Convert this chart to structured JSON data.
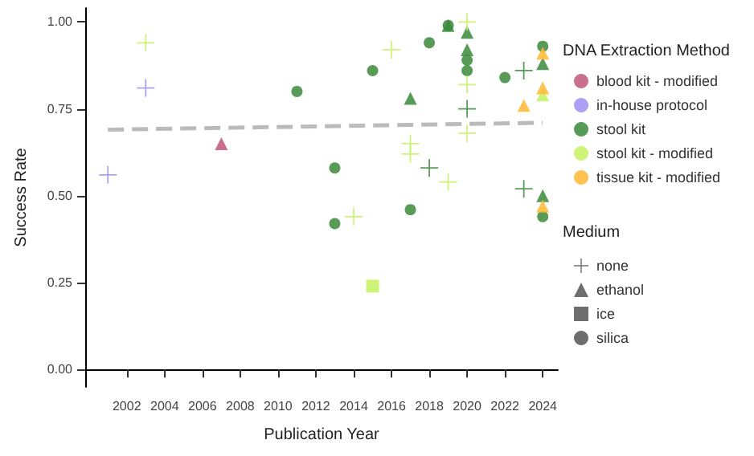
{
  "chart_data": {
    "type": "scatter",
    "xlabel": "Publication Year",
    "ylabel": "Success Rate",
    "legend_title": [
      "DNA Extraction Method",
      "Medium"
    ],
    "legend": "right",
    "grid": false,
    "xlim": [
      1999.8,
      2024.8
    ],
    "xticks": [
      2002,
      2004,
      2006,
      2008,
      2010,
      2012,
      2014,
      2016,
      2018,
      2020,
      2022,
      2024
    ],
    "ylim": [
      -0.05,
      1.04
    ],
    "yticks": [
      {
        "value": 0,
        "label": "0.00"
      },
      {
        "value": 0.25,
        "label": "0.25"
      },
      {
        "value": 0.5,
        "label": "0.50"
      },
      {
        "value": 0.75,
        "label": "0.75"
      },
      {
        "value": 1,
        "label": "1.00"
      }
    ],
    "series": [
      {
        "color": "#c0577a",
        "marker": "triangle",
        "x": [
          2007
        ],
        "values": [
          0.65
        ]
      },
      {
        "color": "#9f8ff0",
        "marker": "cross",
        "x": [
          2001,
          2003
        ],
        "values": [
          0.56,
          0.81
        ]
      },
      {
        "color": "#3a8a3a",
        "marker": "circle",
        "x": [
          2011,
          2013,
          2013,
          2015,
          2017,
          2018,
          2019,
          2020,
          2020,
          2022,
          2024,
          2024
        ],
        "values": [
          0.8,
          0.58,
          0.42,
          0.86,
          0.46,
          0.94,
          0.99,
          0.89,
          0.86,
          0.84,
          0.93,
          0.44
        ]
      },
      {
        "color": "#3a8a3a",
        "marker": "triangle",
        "x": [
          2017,
          2019,
          2020,
          2020,
          2024,
          2024
        ],
        "values": [
          0.78,
          0.99,
          0.97,
          0.92,
          0.88,
          0.5
        ]
      },
      {
        "color": "#3a8a3a",
        "marker": "cross",
        "x": [
          2018,
          2020,
          2023,
          2023
        ],
        "values": [
          0.58,
          0.75,
          0.86,
          0.52
        ]
      },
      {
        "color": "#c4f25f",
        "marker": "cross",
        "x": [
          2003,
          2014,
          2016,
          2017,
          2017,
          2019,
          2020,
          2020,
          2020
        ],
        "values": [
          0.94,
          0.44,
          0.92,
          0.65,
          0.62,
          0.54,
          1.0,
          0.82,
          0.68
        ]
      },
      {
        "color": "#c4f25f",
        "marker": "square",
        "x": [
          2015
        ],
        "values": [
          0.24
        ]
      },
      {
        "color": "#c4f25f",
        "marker": "triangle",
        "x": [
          2024
        ],
        "values": [
          0.79
        ]
      },
      {
        "color": "#ffb833",
        "marker": "triangle",
        "x": [
          2023,
          2024,
          2024,
          2024
        ],
        "values": [
          0.76,
          0.91,
          0.81,
          0.47
        ]
      },
      {
        "type": "line",
        "color": "#bbbbbb",
        "line_style": "dashed",
        "marker": "none",
        "x": [
          2001,
          2024
        ],
        "values": [
          0.69,
          0.71
        ]
      },
      {
        "name": "blood kit - modified",
        "color": "#c0577a",
        "marker": "circle"
      },
      {
        "name": "in-house protocol",
        "color": "#9f8ff0",
        "marker": "circle"
      },
      {
        "name": "stool kit",
        "color": "#3a8a3a",
        "marker": "circle"
      },
      {
        "name": "stool kit - modified",
        "color": "#c4f25f",
        "marker": "circle"
      },
      {
        "name": "tissue kit - modified",
        "color": "#ffb833",
        "marker": "circle"
      },
      {
        "name": "none",
        "color": "#555555",
        "marker": "cross"
      },
      {
        "name": "ethanol",
        "color": "#555555",
        "marker": "triangle"
      },
      {
        "name": "ice",
        "color": "#555555",
        "marker": "square"
      },
      {
        "name": "silica",
        "color": "#555555",
        "marker": "circle"
      }
    ]
  }
}
